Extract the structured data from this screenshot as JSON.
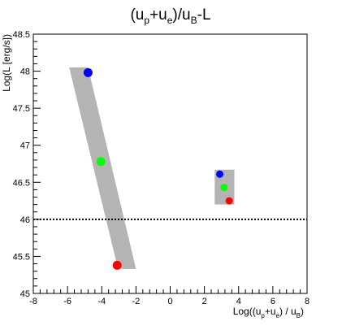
{
  "chart_data": {
    "type": "scatter",
    "title": {
      "base": "(u",
      "sub1": "p",
      "mid": "+u",
      "sub2": "e",
      "after": ")/u",
      "sub3": "B",
      "tail": "-L"
    },
    "xlabel": {
      "base": "Log((u",
      "sub1": "p",
      "mid": "+u",
      "sub2": "e",
      "after": ") / u",
      "sub3": "B",
      "tail": ")"
    },
    "ylabel": "Log(L [erg/s])",
    "xlim": [
      -8,
      8
    ],
    "ylim": [
      45,
      48.5
    ],
    "x_ticks": [
      -8,
      -6,
      -4,
      -2,
      0,
      2,
      4,
      6,
      8
    ],
    "x_tick_labels": [
      "-8",
      "-6",
      "-4",
      "-2",
      "0",
      "2",
      "4",
      "6",
      "8"
    ],
    "y_ticks": [
      45,
      45.5,
      46,
      46.5,
      47,
      47.5,
      48,
      48.5
    ],
    "y_tick_labels": [
      "45",
      "45.5",
      "46",
      "46.5",
      "47",
      "47.5",
      "48",
      "48.5"
    ],
    "grid": false,
    "reference_line": {
      "y": 46.0,
      "style": "dotted",
      "color": "#000000"
    },
    "shaded_regions": [
      {
        "name": "band-left",
        "color": "#b4b4b4",
        "polygon": [
          [
            -5.9,
            48.05
          ],
          [
            -4.8,
            48.05
          ],
          [
            -2.0,
            45.33
          ],
          [
            -3.05,
            45.33
          ]
        ]
      },
      {
        "name": "band-right",
        "color": "#b4b4b4",
        "polygon": [
          [
            2.6,
            46.67
          ],
          [
            3.75,
            46.67
          ],
          [
            3.75,
            46.2
          ],
          [
            2.6,
            46.2
          ]
        ]
      }
    ],
    "points": [
      {
        "x": -4.8,
        "y": 47.98,
        "color": "#0000ff",
        "size": "large"
      },
      {
        "x": -4.05,
        "y": 46.78,
        "color": "#00ff00",
        "size": "large"
      },
      {
        "x": -3.1,
        "y": 45.38,
        "color": "#ff0000",
        "size": "large"
      },
      {
        "x": 2.9,
        "y": 46.61,
        "color": "#0000ff",
        "size": "small"
      },
      {
        "x": 3.15,
        "y": 46.43,
        "color": "#00ff00",
        "size": "small"
      },
      {
        "x": 3.45,
        "y": 46.25,
        "color": "#ff0000",
        "size": "small"
      }
    ]
  }
}
